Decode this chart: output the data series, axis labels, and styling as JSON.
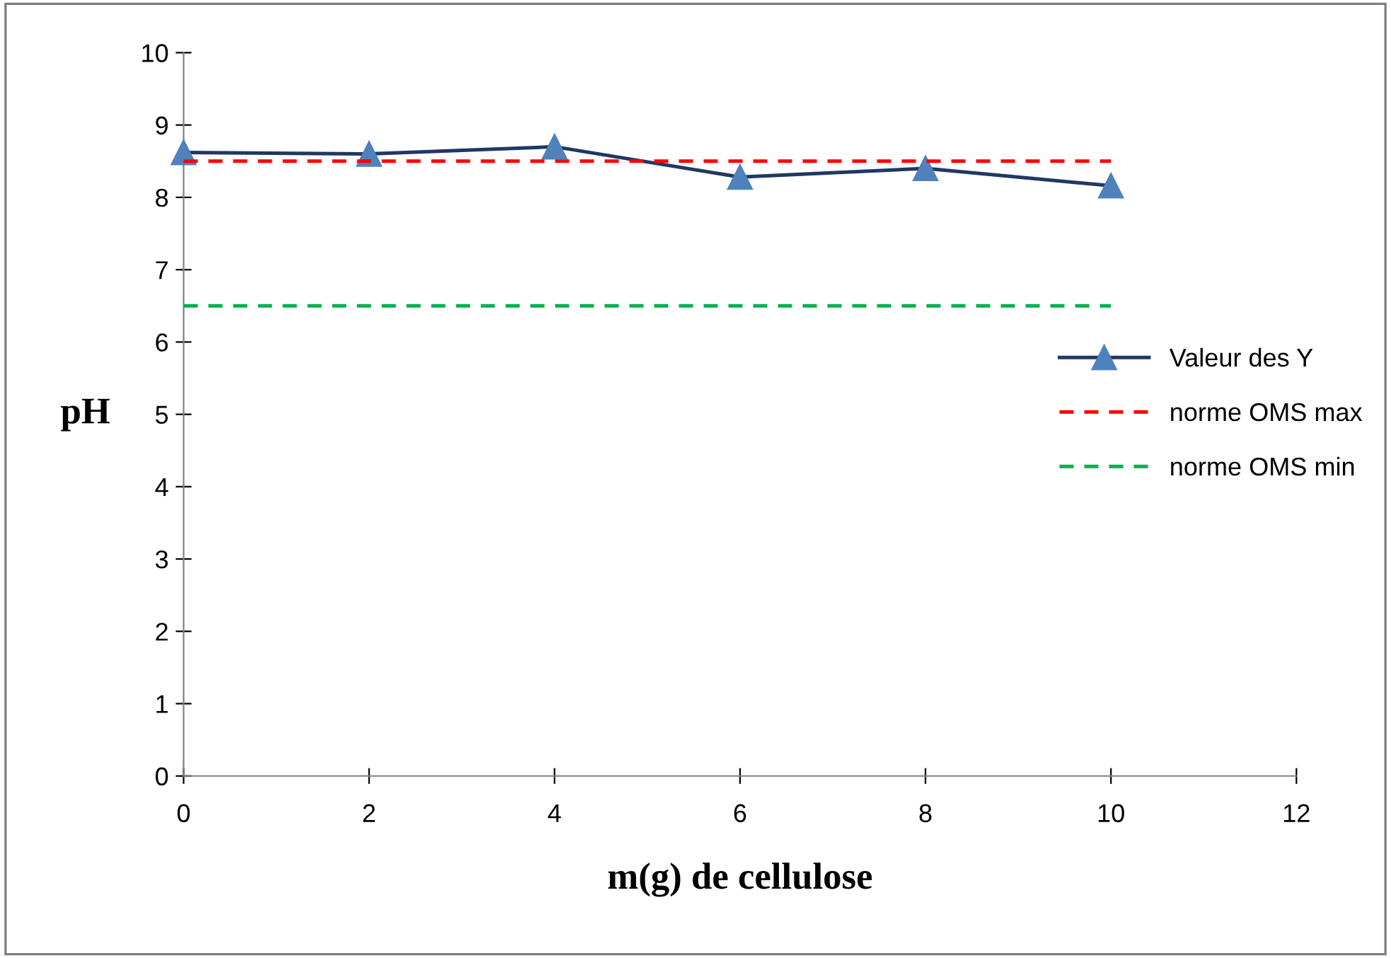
{
  "chart_data": {
    "type": "line",
    "xlabel": "m(g) de cellulose",
    "ylabel": "pH",
    "x": [
      0,
      2,
      4,
      6,
      8,
      10
    ],
    "series": [
      {
        "name": "Valeur des Y",
        "color": "#1f3864",
        "marker": "triangle",
        "line_style": "solid",
        "values": [
          8.62,
          8.6,
          8.7,
          8.28,
          8.4,
          8.16
        ]
      },
      {
        "name": "norme OMS max",
        "color": "#ff0000",
        "marker": "none",
        "line_style": "dashed",
        "values": [
          8.5,
          8.5,
          8.5,
          8.5,
          8.5,
          8.5
        ]
      },
      {
        "name": "norme OMS min",
        "color": "#00b050",
        "marker": "none",
        "line_style": "dashed",
        "values": [
          6.5,
          6.5,
          6.5,
          6.5,
          6.5,
          6.5
        ]
      }
    ],
    "xlim": [
      0,
      12
    ],
    "xticks": [
      0,
      2,
      4,
      6,
      8,
      10,
      12
    ],
    "ylim": [
      0,
      10
    ],
    "yticks": [
      0,
      1,
      2,
      3,
      4,
      5,
      6,
      7,
      8,
      9,
      10
    ],
    "grid": false,
    "legend": "right"
  }
}
